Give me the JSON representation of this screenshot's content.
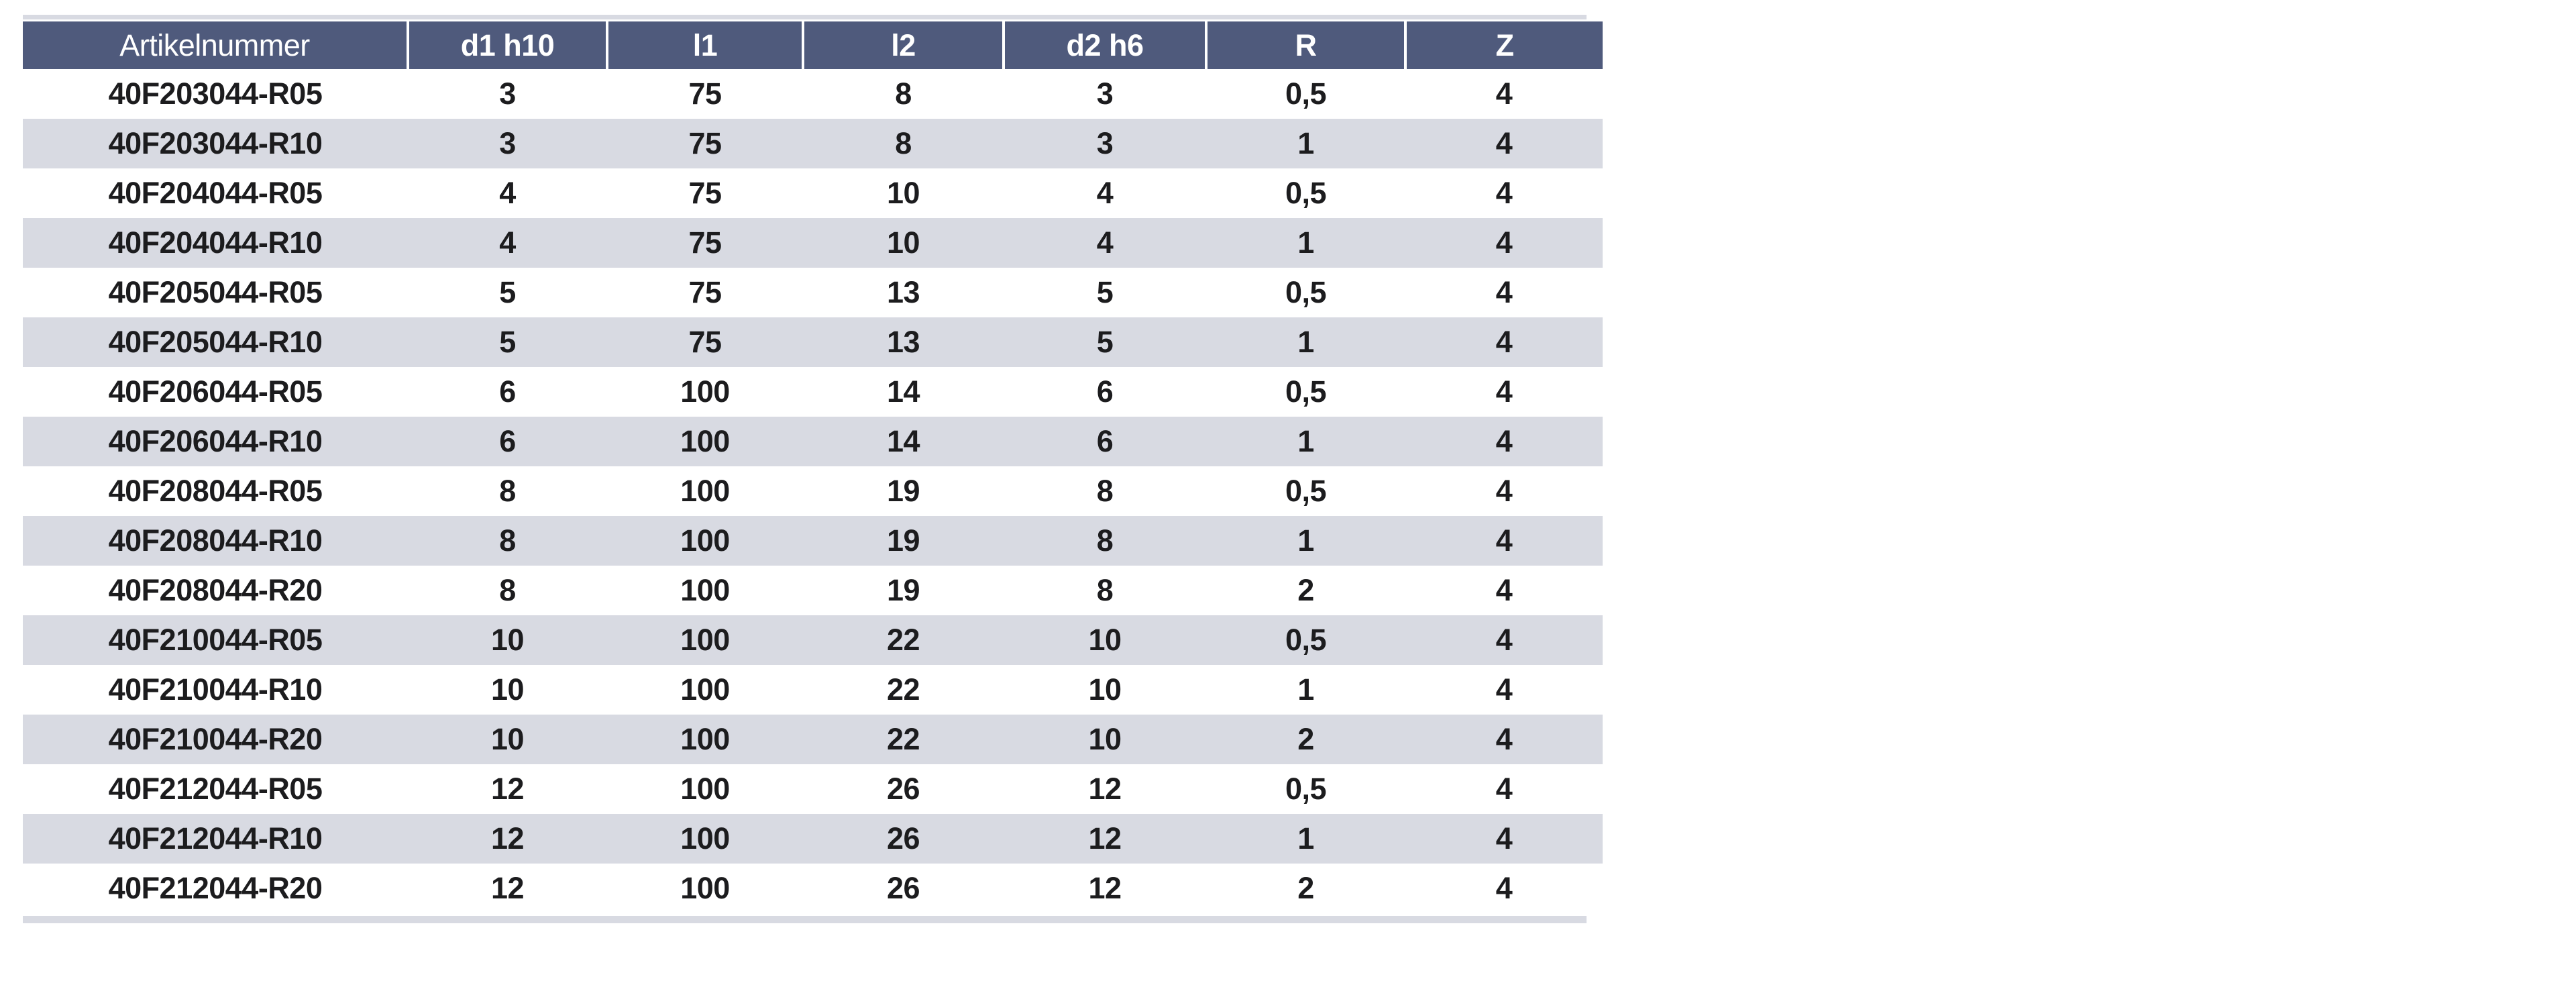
{
  "table": {
    "columns": [
      "Artikelnummer",
      "d1 h10",
      "l1",
      "l2",
      "d2 h6",
      "R",
      "Z"
    ],
    "rows": [
      [
        "40F203044-R05",
        "3",
        "75",
        "8",
        "3",
        "0,5",
        "4"
      ],
      [
        "40F203044-R10",
        "3",
        "75",
        "8",
        "3",
        "1",
        "4"
      ],
      [
        "40F204044-R05",
        "4",
        "75",
        "10",
        "4",
        "0,5",
        "4"
      ],
      [
        "40F204044-R10",
        "4",
        "75",
        "10",
        "4",
        "1",
        "4"
      ],
      [
        "40F205044-R05",
        "5",
        "75",
        "13",
        "5",
        "0,5",
        "4"
      ],
      [
        "40F205044-R10",
        "5",
        "75",
        "13",
        "5",
        "1",
        "4"
      ],
      [
        "40F206044-R05",
        "6",
        "100",
        "14",
        "6",
        "0,5",
        "4"
      ],
      [
        "40F206044-R10",
        "6",
        "100",
        "14",
        "6",
        "1",
        "4"
      ],
      [
        "40F208044-R05",
        "8",
        "100",
        "19",
        "8",
        "0,5",
        "4"
      ],
      [
        "40F208044-R10",
        "8",
        "100",
        "19",
        "8",
        "1",
        "4"
      ],
      [
        "40F208044-R20",
        "8",
        "100",
        "19",
        "8",
        "2",
        "4"
      ],
      [
        "40F210044-R05",
        "10",
        "100",
        "22",
        "10",
        "0,5",
        "4"
      ],
      [
        "40F210044-R10",
        "10",
        "100",
        "22",
        "10",
        "1",
        "4"
      ],
      [
        "40F210044-R20",
        "10",
        "100",
        "22",
        "10",
        "2",
        "4"
      ],
      [
        "40F212044-R05",
        "12",
        "100",
        "26",
        "12",
        "0,5",
        "4"
      ],
      [
        "40F212044-R10",
        "12",
        "100",
        "26",
        "12",
        "1",
        "4"
      ],
      [
        "40F212044-R20",
        "12",
        "100",
        "26",
        "12",
        "2",
        "4"
      ]
    ],
    "colors": {
      "header_bg": "#4f5a7c",
      "header_text": "#ffffff",
      "stripe_bg": "#d8dae2",
      "body_text": "#1c1c1e",
      "rule": "#d8dae2"
    }
  }
}
